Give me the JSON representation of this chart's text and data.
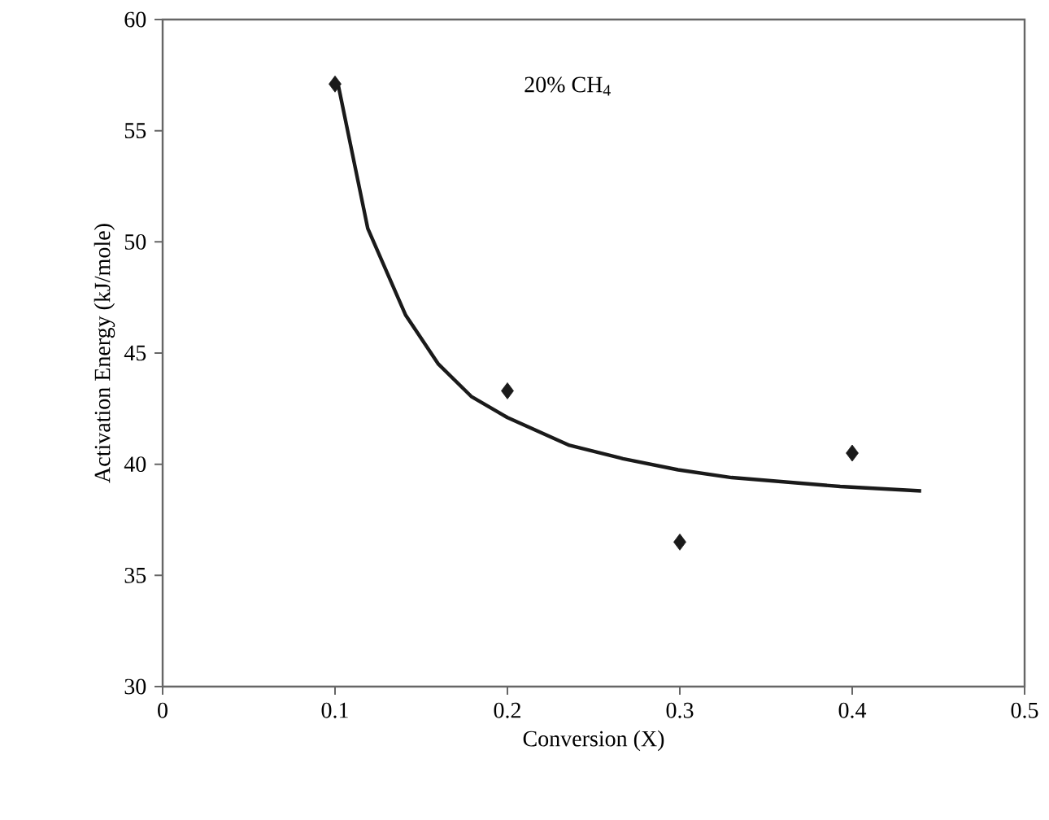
{
  "chart_data": {
    "type": "scatter",
    "xlabel": "Conversion (X)",
    "ylabel": "Activation Energy (kJ/mole)",
    "annotations": [
      "20% CH$_{4}$"
    ],
    "xlim": [
      0,
      0.5
    ],
    "ylim": [
      30,
      60
    ],
    "xticks": [
      0,
      0.1,
      0.2,
      0.3,
      0.4,
      0.5
    ],
    "yticks": [
      30,
      35,
      40,
      45,
      50,
      55,
      60
    ],
    "series": [
      {
        "color": "#1a1a1a",
        "marker": "diamond",
        "x": [
          0.1,
          0.2,
          0.3,
          0.4
        ],
        "values": [
          57.1,
          43.3,
          36.5,
          40.5
        ]
      },
      {
        "type": "line",
        "color": "#1a1a1a",
        "marker": "none",
        "line_style": "solid",
        "x": [
          0.102,
          0.119,
          0.141,
          0.16,
          0.179,
          0.2,
          0.236,
          0.267,
          0.299,
          0.33,
          0.393,
          0.44
        ],
        "values": [
          57.0,
          50.6,
          46.7,
          44.5,
          43.05,
          42.1,
          40.85,
          40.25,
          39.75,
          39.4,
          39.0,
          38.8
        ]
      }
    ]
  }
}
